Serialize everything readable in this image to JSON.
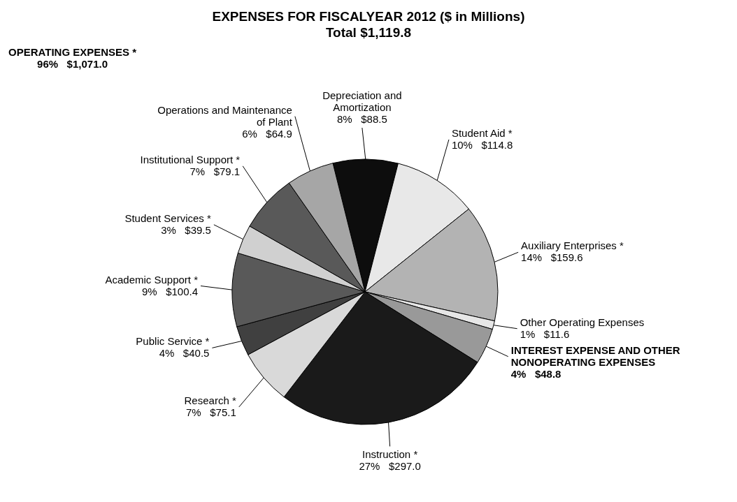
{
  "chart_data": {
    "type": "pie",
    "title": "EXPENSES FOR FISCALYEAR 2012 ($ in Millions)",
    "subtitle": "Total $1,119.8",
    "annotations": [
      "OPERATING EXPENSES *\n96%   $1,071.0"
    ],
    "categories": [
      "Depreciation and Amortization",
      "Student Aid *",
      "Auxiliary Enterprises *",
      "Other Operating Expenses",
      "INTEREST EXPENSE AND OTHER NONOPERATING EXPENSES",
      "Instruction *",
      "Research *",
      "Public Service *",
      "Academic Support *",
      "Student Services *",
      "Institutional Support *",
      "Operations and Maintenance of Plant"
    ],
    "values": [
      88.5,
      114.8,
      159.6,
      11.6,
      48.8,
      297.0,
      75.1,
      40.5,
      100.4,
      39.5,
      79.1,
      64.9
    ],
    "value_labels": [
      "8%   $88.5",
      "10%   $114.8",
      "14%   $159.6",
      "1%   $11.6",
      "4%   $48.8",
      "27%   $297.0",
      "7%   $75.1",
      "4%   $40.5",
      "9%   $100.4",
      "3%   $39.5",
      "7%   $79.1",
      "6%   $64.9"
    ],
    "colors": [
      "#0d0d0d",
      "#e8e8e8",
      "#b3b3b3",
      "#e6e6e6",
      "#999999",
      "#1a1a1a",
      "#d9d9d9",
      "#404040",
      "#595959",
      "#d0d0d0",
      "#595959",
      "#a6a6a6"
    ],
    "legend": false
  }
}
